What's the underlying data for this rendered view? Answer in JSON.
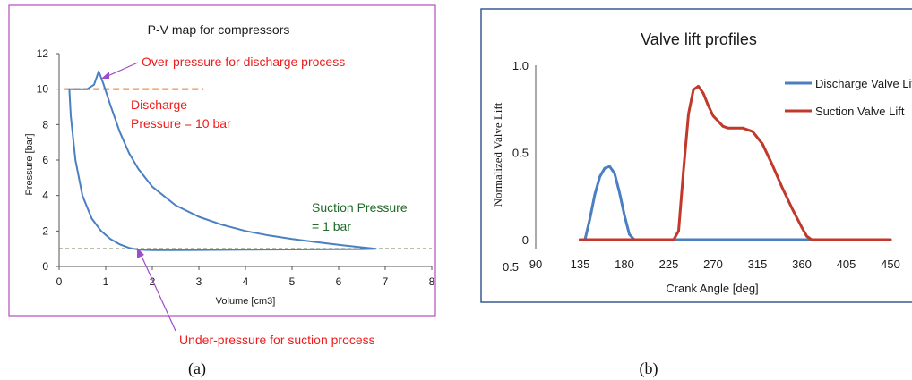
{
  "chart_data": [
    {
      "type": "line",
      "title": "P-V map for  compressors",
      "xlabel": "Volume [cm3]",
      "ylabel": "Pressure [bar]",
      "xlim": [
        0,
        8
      ],
      "ylim": [
        0,
        12
      ],
      "x_ticks": [
        "0",
        "1",
        "2",
        "3",
        "4",
        "5",
        "6",
        "7",
        "8"
      ],
      "y_ticks": [
        "0",
        "2",
        "4",
        "6",
        "8",
        "10",
        "12"
      ],
      "grid": false,
      "series": [
        {
          "color": "#4a7fc1",
          "x": [
            0.22,
            0.3,
            0.45,
            0.6,
            0.75,
            0.85,
            0.95,
            1.1,
            1.3,
            1.5,
            1.7,
            2.0,
            2.5,
            3.0,
            3.5,
            4.0,
            4.5,
            5.0,
            5.5,
            6.0,
            6.5,
            6.8,
            6.5,
            6.0,
            5.0,
            4.0,
            3.0,
            2.5,
            2.0,
            1.7,
            1.5,
            1.3,
            1.1,
            0.9,
            0.7,
            0.5,
            0.35,
            0.25,
            0.22
          ],
          "y": [
            10.0,
            10.0,
            10.0,
            10.0,
            10.25,
            11.0,
            10.3,
            9.1,
            7.6,
            6.4,
            5.5,
            4.5,
            3.45,
            2.8,
            2.35,
            2.0,
            1.75,
            1.55,
            1.38,
            1.22,
            1.08,
            1.0,
            0.98,
            0.97,
            0.96,
            0.95,
            0.93,
            0.92,
            0.92,
            0.95,
            1.05,
            1.25,
            1.55,
            2.0,
            2.7,
            4.0,
            6.0,
            8.5,
            10.0
          ]
        }
      ],
      "reference_lines": [
        {
          "label": "Discharge Pressure = 10 bar",
          "y": 10,
          "x_range": [
            0.1,
            3.1
          ],
          "color": "#e8792a"
        },
        {
          "label": "Suction Pressure = 1 bar",
          "y": 1,
          "x_range": [
            0,
            8
          ],
          "color": "#4a5a1a"
        }
      ],
      "annotations": [
        {
          "text": "Over-pressure for discharge process",
          "color": "#ee1c1c"
        },
        {
          "text_lines": [
            "Discharge",
            "Pressure = 10 bar"
          ],
          "color": "#ee1c1c"
        },
        {
          "text_lines": [
            "Suction Pressure",
            "= 1 bar"
          ],
          "color": "#1f6b2a"
        },
        {
          "text": "Under-pressure for suction process",
          "color": "#ee1c1c"
        }
      ],
      "caption": "(a)"
    },
    {
      "type": "line",
      "title": "Valve lift profiles",
      "xlabel": "Crank Angle [deg]",
      "ylabel": "Normalized Valve Lift",
      "xlim": [
        90,
        450
      ],
      "ylim": [
        0,
        1.0
      ],
      "x_ticks": [
        "90",
        "135",
        "180",
        "225",
        "270",
        "315",
        "360",
        "405",
        "450"
      ],
      "y_ticks": [
        "0",
        "0.5",
        "1.0"
      ],
      "extra_tick": "0.5",
      "grid": false,
      "legend": "right",
      "series": [
        {
          "name": "Discharge Valve Lift",
          "color": "#4a7fc1",
          "x": [
            135,
            140,
            145,
            150,
            155,
            160,
            165,
            170,
            175,
            180,
            185,
            190,
            200,
            250,
            300,
            350,
            400,
            450
          ],
          "y": [
            0,
            0,
            0.12,
            0.26,
            0.36,
            0.41,
            0.42,
            0.38,
            0.27,
            0.14,
            0.03,
            0,
            0,
            0,
            0,
            0,
            0,
            0
          ]
        },
        {
          "name": "Suction Valve Lift",
          "color": "#c0392b",
          "x": [
            135,
            180,
            230,
            235,
            240,
            245,
            250,
            255,
            260,
            265,
            270,
            275,
            280,
            285,
            290,
            300,
            310,
            320,
            330,
            340,
            350,
            360,
            365,
            370,
            375,
            380,
            400,
            450
          ],
          "y": [
            0,
            0,
            0,
            0.05,
            0.4,
            0.72,
            0.86,
            0.88,
            0.84,
            0.77,
            0.71,
            0.68,
            0.65,
            0.64,
            0.64,
            0.64,
            0.62,
            0.55,
            0.43,
            0.3,
            0.18,
            0.07,
            0.02,
            0,
            0,
            0,
            0,
            0
          ]
        }
      ],
      "caption": "(b)"
    }
  ]
}
